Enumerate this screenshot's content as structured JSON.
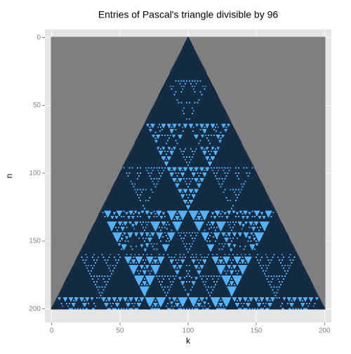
{
  "chart_data": {
    "type": "pascal-triangle",
    "title": "Entries of Pascal's triangle divisible by 96",
    "divisor": 96,
    "x_label": "k",
    "y_label": "n",
    "xlim": [
      -5,
      205
    ],
    "xticks": [
      0,
      50,
      100,
      150,
      200
    ],
    "ylim": [
      -6,
      210
    ],
    "yticks": [
      0,
      50,
      100,
      150,
      200
    ],
    "y_reversed": true,
    "rows": 200,
    "colors": {
      "divisible": "#56B1F7",
      "other": "#132B43",
      "empty": "#7F7F7F",
      "panel": "#E5E5E5",
      "grid": "#FFFFFF"
    },
    "grid": true
  }
}
